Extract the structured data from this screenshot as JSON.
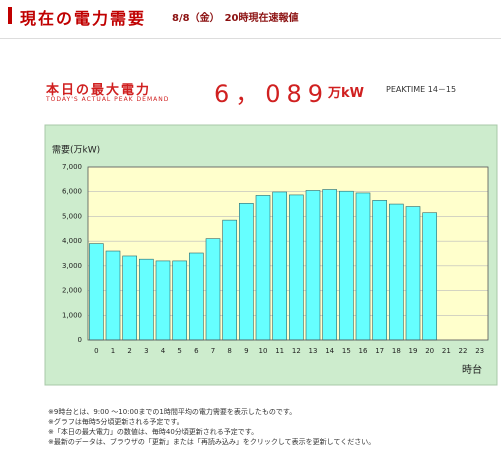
{
  "header": {
    "title": "現在の電力需要",
    "subtitle": "8/8（金）　20時現在速報値"
  },
  "peak": {
    "label": "本日の最大電力",
    "label_en": "TODAY'S ACTUAL PEAK DEMAND",
    "value": "6，089",
    "unit": "万kW",
    "time": "PEAKTIME 14－15"
  },
  "chart_data": {
    "type": "bar",
    "y_label": "需要(万kW)",
    "x_label": "時台",
    "categories": [
      "0",
      "1",
      "2",
      "3",
      "4",
      "5",
      "6",
      "7",
      "8",
      "9",
      "10",
      "11",
      "12",
      "13",
      "14",
      "15",
      "16",
      "17",
      "18",
      "19",
      "20",
      "21",
      "22",
      "23"
    ],
    "values": [
      3900,
      3600,
      3400,
      3270,
      3200,
      3200,
      3520,
      4100,
      4850,
      5530,
      5850,
      5990,
      5870,
      6050,
      6089,
      6020,
      5950,
      5650,
      5500,
      5400,
      5150,
      null,
      null,
      null
    ],
    "color": "#66ffff",
    "ylim": [
      0,
      7000
    ],
    "yticks": [
      0,
      {
        "value": 1000,
        "label": "1,000"
      },
      {
        "value": 2000,
        "label": "2,000"
      },
      {
        "value": 3000,
        "label": "3,000"
      },
      {
        "value": 4000,
        "label": "4,000"
      },
      {
        "value": 5000,
        "label": "5,000"
      },
      {
        "value": 6000,
        "label": "6,000"
      },
      {
        "value": 7000,
        "label": "7,000"
      }
    ],
    "grid": true
  },
  "notes": [
    "※9時台とは、9:00 ～10:00までの1時間平均の電力需要を表示したものです。",
    "※グラフは毎時5分頃更新される予定です。",
    "※「本日の最大電力」の数値は、毎時40分頃更新される予定です。",
    "※最新のデータは、ブラウザの「更新」または「再読み込み」をクリックして表示を更新してください。"
  ]
}
